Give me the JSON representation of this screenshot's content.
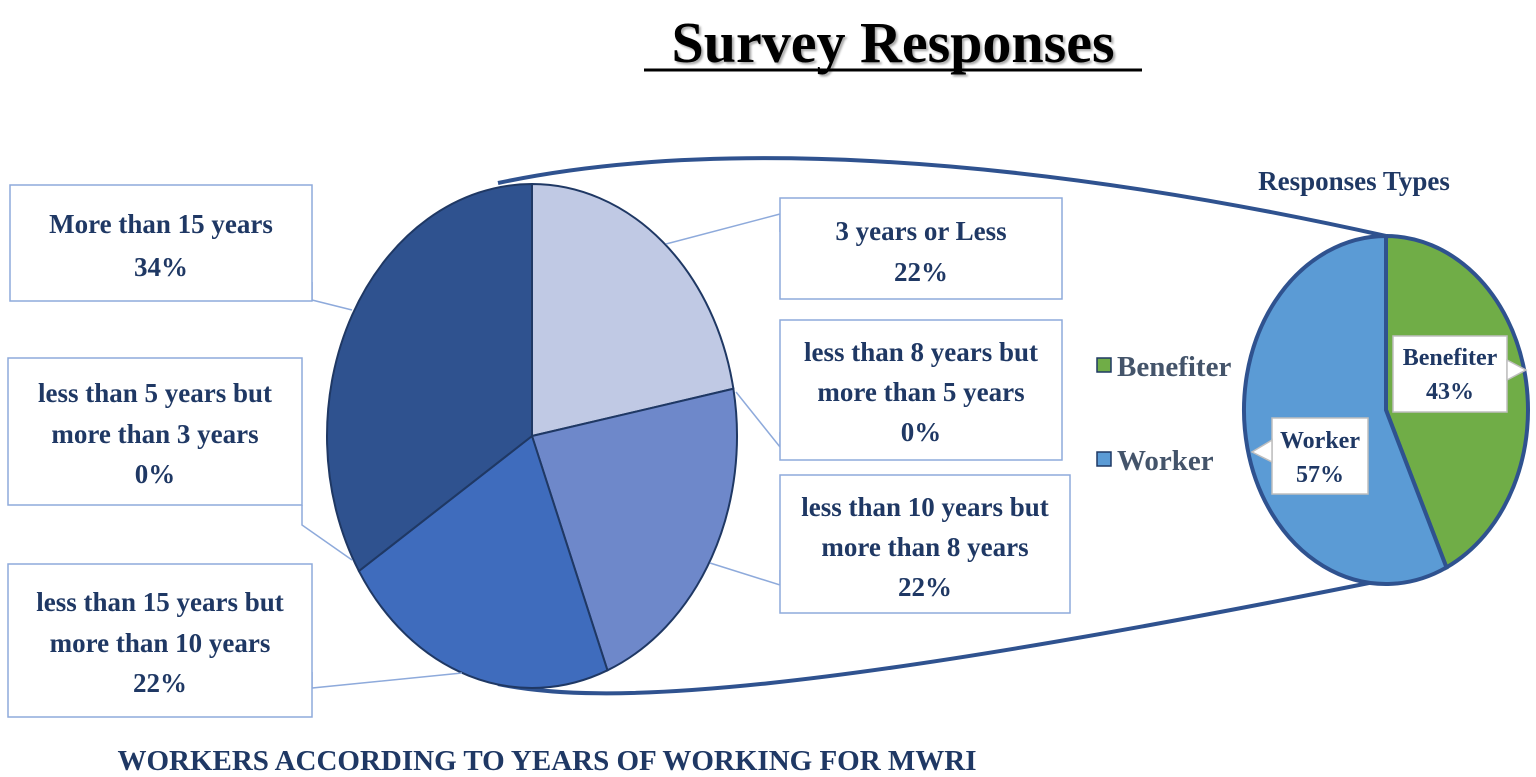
{
  "chart_data": [
    {
      "type": "pie",
      "title": "Survey Responses",
      "caption": "WORKERS ACCORDING TO YEARS OF WORKING FOR MWRI",
      "slices": [
        {
          "label": "3 years or Less",
          "value": 22,
          "pct_label": "22%",
          "color": "#c0c9e4"
        },
        {
          "label": "less than 8 years but more than 5 years",
          "value": 0,
          "pct_label": "0%",
          "color": "#8fa4d6"
        },
        {
          "label": "less than 10 years but more than 8 years",
          "value": 22,
          "pct_label": "22%",
          "color": "#6e88ca"
        },
        {
          "label": "less than 15 years but more than 10 years",
          "value": 22,
          "pct_label": "22%",
          "color": "#3f6cbd"
        },
        {
          "label": "less than 5 years but more than 3 years",
          "value": 0,
          "pct_label": "0%",
          "color": "#5577b8"
        },
        {
          "label": "More than 15 years",
          "value": 34,
          "pct_label": "34%",
          "color": "#2f528f"
        }
      ]
    },
    {
      "type": "pie",
      "title": "Responses Types",
      "slices": [
        {
          "label": "Benefiter",
          "value": 43,
          "pct_label": "43%",
          "color": "#70ad47"
        },
        {
          "label": "Worker",
          "value": 57,
          "pct_label": "57%",
          "color": "#5b9bd5"
        }
      ],
      "legend": [
        {
          "label": "Benefiter",
          "color": "#70ad47"
        },
        {
          "label": "Worker",
          "color": "#5b9bd5"
        }
      ],
      "legend_position": "left"
    }
  ],
  "colors": {
    "label_text": "#1f3864",
    "callout_border": "#8eaadb",
    "outline": "#2f528f",
    "legend_text": "#44546a"
  }
}
